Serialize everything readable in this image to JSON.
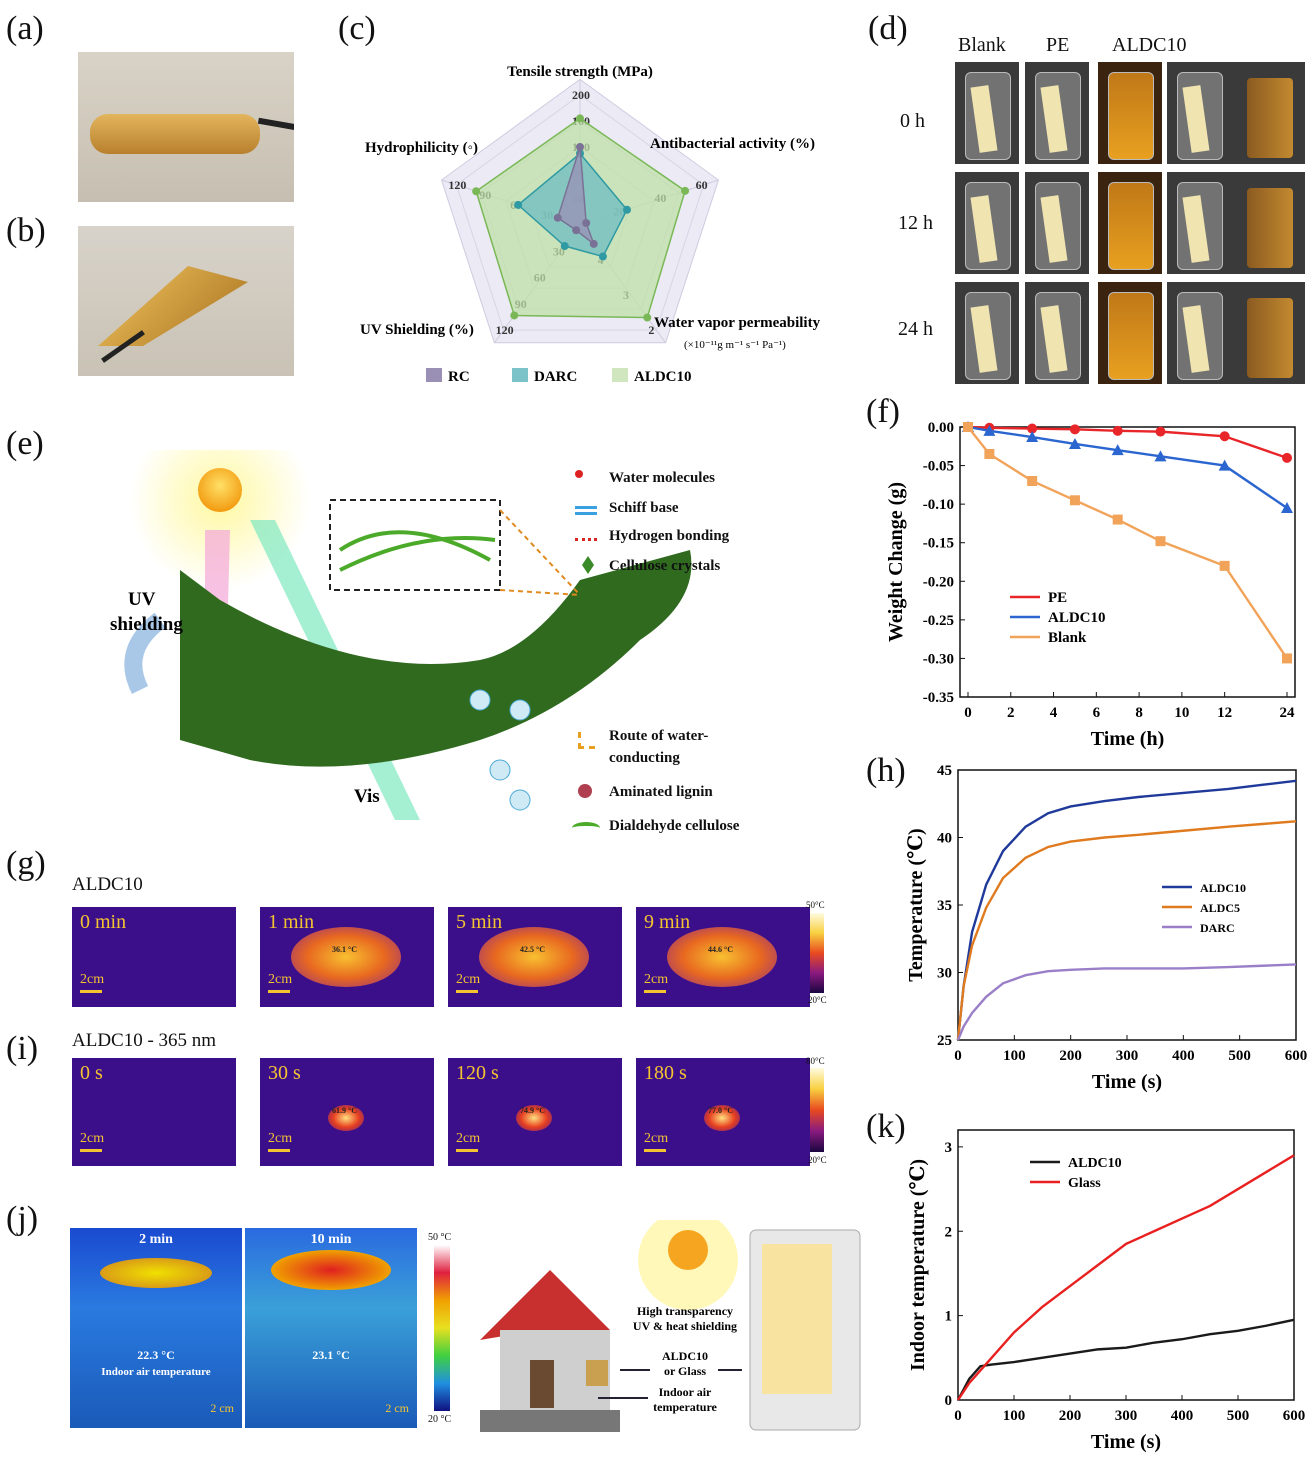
{
  "panels": {
    "a": "(a)",
    "b": "(b)",
    "c": "(c)",
    "d": "(d)",
    "e": "(e)",
    "f": "(f)",
    "g": "(g)",
    "h": "(h)",
    "i": "(i)",
    "j": "(j)",
    "k": "(k)"
  },
  "radar": {
    "axes": [
      {
        "name": "Tensile strength (MPa)",
        "ticks": [
          "40",
          "80",
          "120",
          "160",
          "200"
        ]
      },
      {
        "name": "Antibacterial activity (%)",
        "ticks": [
          "20",
          "40",
          "60"
        ]
      },
      {
        "name": "Water vapor permeability",
        "sub": "(×10⁻¹¹g m⁻¹ s⁻¹ Pa⁻¹)",
        "ticks": [
          "4",
          "3",
          "2"
        ]
      },
      {
        "name": "UV Shielding (%)",
        "ticks": [
          "30",
          "60",
          "90",
          "120"
        ]
      },
      {
        "name": "Hydrophilicity (◦)",
        "ticks": [
          "30",
          "60",
          "90",
          "120"
        ]
      }
    ],
    "legend": [
      "RC",
      "DARC",
      "ALDC10"
    ],
    "colors": {
      "RC": "#9a90b6",
      "DARC": "#3aa0a8",
      "ALDC10": "#8dc46a"
    }
  },
  "d": {
    "cols": [
      "Blank",
      "PE",
      "ALDC10"
    ],
    "rows": [
      "0 h",
      "12 h",
      "24 h"
    ]
  },
  "e": {
    "uv": "UV",
    "shielding": "shielding",
    "vis": "Vis",
    "legend": [
      "Water molecules",
      "Schiff base",
      "Hydrogen bonding",
      "Cellulose crystals",
      "Route of water-",
      "conducting",
      "Aminated lignin",
      "Dialdehyde cellulose"
    ]
  },
  "g": {
    "title": "ALDC10",
    "times": [
      "0 min",
      "1 min",
      "5 min",
      "9 min"
    ],
    "temps": [
      "",
      "36.1 °C",
      "42.5 °C",
      "44.6 °C"
    ],
    "scale": "2cm",
    "bar_top": "50°C",
    "bar_bottom": "20°C"
  },
  "i": {
    "title": "ALDC10 - 365 nm",
    "times": [
      "0 s",
      "30 s",
      "120 s",
      "180 s"
    ],
    "temps": [
      "",
      "61.9 °C",
      "74.9 °C",
      "77.0 °C"
    ],
    "scale": "2cm",
    "bar_top": "80°C",
    "bar_bottom": "20°C"
  },
  "j": {
    "times": [
      "2 min",
      "10 min"
    ],
    "temps": [
      "22.3 °C",
      "23.1 °C"
    ],
    "note": "Indoor air temperature",
    "scale": "2 cm",
    "bar_top": "50 °C",
    "bar_bottom": "20 °C",
    "house": [
      "High transparency",
      "UV & heat shielding",
      "ALDC10",
      "or Glass",
      "Indoor air",
      "temperature"
    ]
  },
  "chart_data": [
    {
      "type": "line",
      "panel": "f",
      "xlabel": "Time (h)",
      "ylabel": "Weight Change (g)",
      "x": [
        0,
        1,
        3,
        5,
        7,
        9,
        12,
        24
      ],
      "xticks": [
        "0",
        "2",
        "4",
        "6",
        "8",
        "10",
        "12",
        "24"
      ],
      "yticks": [
        "0.00",
        "-0.05",
        "-0.10",
        "-0.15",
        "-0.20",
        "-0.25",
        "-0.30",
        "-0.35"
      ],
      "ylim": [
        -0.35,
        0.0
      ],
      "series": [
        {
          "name": "PE",
          "color": "#e8262a",
          "values": [
            0,
            -0.001,
            -0.002,
            -0.003,
            -0.005,
            -0.006,
            -0.012,
            -0.04
          ]
        },
        {
          "name": "ALDC10",
          "color": "#2b66d0",
          "values": [
            0,
            -0.005,
            -0.013,
            -0.022,
            -0.03,
            -0.038,
            -0.05,
            -0.105
          ]
        },
        {
          "name": "Blank",
          "color": "#f2a35a",
          "values": [
            0,
            -0.035,
            -0.07,
            -0.095,
            -0.12,
            -0.148,
            -0.18,
            -0.3
          ]
        }
      ]
    },
    {
      "type": "line",
      "panel": "h",
      "xlabel": "Time (s)",
      "ylabel": "Temperature (℃)",
      "xticks": [
        "0",
        "100",
        "200",
        "300",
        "400",
        "500",
        "600"
      ],
      "yticks": [
        "25",
        "30",
        "35",
        "40",
        "45"
      ],
      "xlim": [
        0,
        600
      ],
      "ylim": [
        25,
        45
      ],
      "series": [
        {
          "name": "ALDC10",
          "color": "#1f3a9a",
          "x": [
            0,
            10,
            25,
            50,
            80,
            120,
            160,
            200,
            260,
            320,
            400,
            480,
            540,
            600
          ],
          "values": [
            25,
            29,
            33,
            36.5,
            39,
            40.8,
            41.8,
            42.3,
            42.7,
            43,
            43.3,
            43.6,
            43.9,
            44.2
          ]
        },
        {
          "name": "ALDC5",
          "color": "#e07a1e",
          "x": [
            0,
            10,
            25,
            50,
            80,
            120,
            160,
            200,
            260,
            320,
            400,
            480,
            540,
            600
          ],
          "values": [
            25,
            29,
            32,
            34.8,
            37,
            38.5,
            39.3,
            39.7,
            40,
            40.2,
            40.5,
            40.8,
            41,
            41.2
          ]
        },
        {
          "name": "DARC",
          "color": "#9a7fc8",
          "x": [
            0,
            10,
            25,
            50,
            80,
            120,
            160,
            200,
            260,
            320,
            400,
            480,
            540,
            600
          ],
          "values": [
            25,
            26,
            27,
            28.2,
            29.2,
            29.8,
            30.1,
            30.2,
            30.3,
            30.3,
            30.3,
            30.4,
            30.5,
            30.6
          ]
        }
      ]
    },
    {
      "type": "line",
      "panel": "k",
      "xlabel": "Time (s)",
      "ylabel": "Indoor  temperature (℃)",
      "xticks": [
        "0",
        "100",
        "200",
        "300",
        "400",
        "500",
        "600"
      ],
      "yticks": [
        "0",
        "1",
        "2",
        "3"
      ],
      "xlim": [
        0,
        600
      ],
      "ylim": [
        0,
        3.2
      ],
      "series": [
        {
          "name": "ALDC10",
          "color": "#1a1a1a",
          "x": [
            0,
            20,
            40,
            60,
            100,
            150,
            200,
            250,
            300,
            350,
            400,
            450,
            500,
            550,
            600
          ],
          "values": [
            0,
            0.25,
            0.4,
            0.42,
            0.45,
            0.5,
            0.55,
            0.6,
            0.62,
            0.68,
            0.72,
            0.78,
            0.82,
            0.88,
            0.95
          ]
        },
        {
          "name": "Glass",
          "color": "#e82020",
          "x": [
            0,
            20,
            40,
            60,
            100,
            150,
            200,
            250,
            300,
            350,
            400,
            450,
            500,
            550,
            600
          ],
          "values": [
            0,
            0.2,
            0.35,
            0.5,
            0.8,
            1.1,
            1.35,
            1.6,
            1.85,
            2.0,
            2.15,
            2.3,
            2.5,
            2.7,
            2.9
          ]
        }
      ]
    }
  ]
}
